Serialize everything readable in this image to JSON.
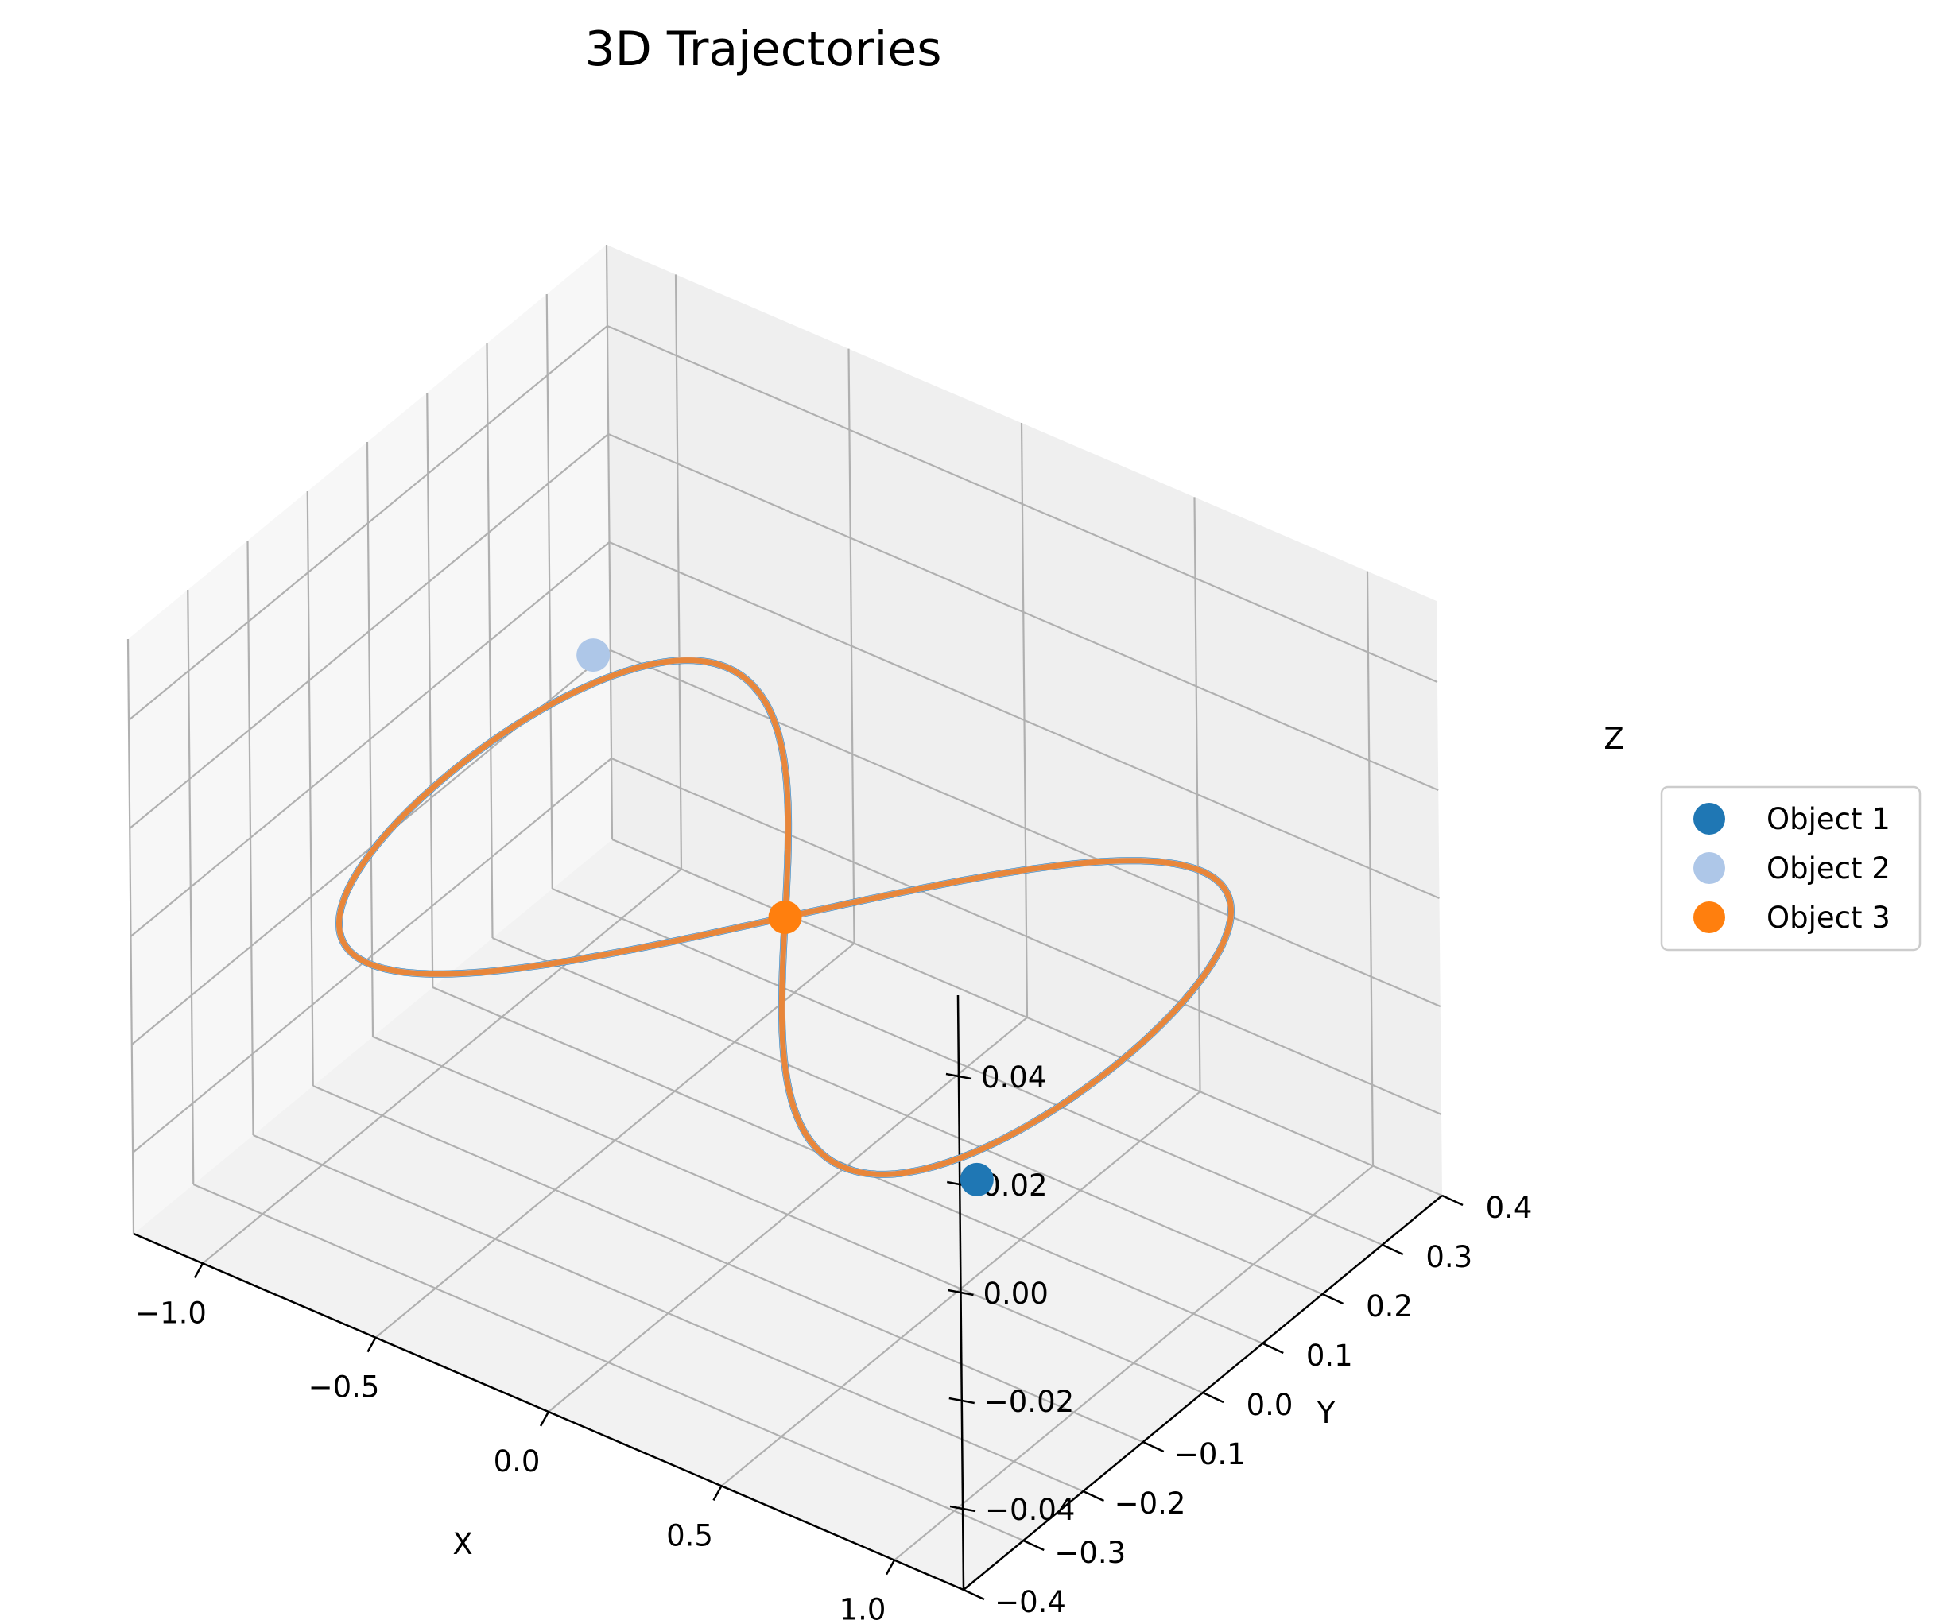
{
  "chart_data": {
    "type": "scatter",
    "projection": "3d",
    "title": "3D Trajectories",
    "xlabel": "X",
    "ylabel": "Y",
    "zlabel": "Z",
    "xlim": [
      -1.2,
      1.2
    ],
    "ylim": [
      -0.4,
      0.4
    ],
    "zlim": [
      -0.055,
      0.055
    ],
    "grid": true,
    "legend_position": "right",
    "x_ticks": [
      "−1.0",
      "−0.5",
      "0.0",
      "0.5",
      "1.0"
    ],
    "y_ticks": [
      "−0.4",
      "−0.3",
      "−0.2",
      "−0.1",
      "0.0",
      "0.1",
      "0.2",
      "0.3",
      "0.4"
    ],
    "z_ticks": [
      "−0.04",
      "−0.02",
      "0.00",
      "0.02",
      "0.04"
    ],
    "trajectory": {
      "description_curve": "figure-eight orbit in z = 0 plane",
      "x_amplitude": 0.97,
      "y_amplitude": 0.3,
      "color": "#e8863a"
    },
    "series": [
      {
        "name": "Object 1",
        "color": "#1f77b4",
        "x": 0.97,
        "y": -0.24,
        "z": 0.0
      },
      {
        "name": "Object 2",
        "color": "#aec7e8",
        "x": -0.97,
        "y": 0.24,
        "z": 0.0
      },
      {
        "name": "Object 3",
        "color": "#ff7f0e",
        "x": 0.0,
        "y": 0.0,
        "z": 0.0
      }
    ]
  }
}
